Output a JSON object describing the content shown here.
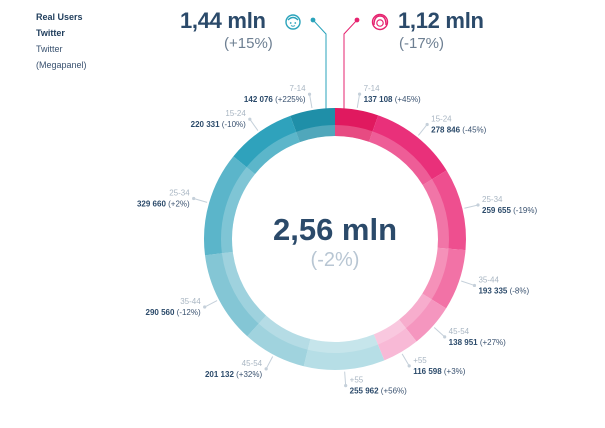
{
  "legend": {
    "real_users": "Real Users",
    "twitter": "Twitter",
    "twitter2": "Twitter",
    "megapanel": "(Megapanel)"
  },
  "totals": {
    "male": {
      "value": "1,44 mln",
      "change": "(+15%)",
      "color": "#2aa3bb",
      "icon": "male-face-icon"
    },
    "female": {
      "value": "1,12 mln",
      "change": "(-17%)",
      "color": "#e6236f",
      "icon": "female-face-icon"
    },
    "total": {
      "value": "2,56 mln",
      "change": "(-2%)"
    }
  },
  "chart_data": {
    "type": "donut",
    "center_value": "2,56 mln",
    "center_change": "(-2%)",
    "segments": [
      {
        "group": "female",
        "age": "7-14",
        "value": 137108,
        "value_label": "137 108",
        "change": "(+45%)",
        "color": "#e0195f"
      },
      {
        "group": "female",
        "age": "15-24",
        "value": 278846,
        "value_label": "278 846",
        "change": "(-45%)",
        "color": "#e9307a"
      },
      {
        "group": "female",
        "age": "25-34",
        "value": 259655,
        "value_label": "259 655",
        "change": "(-19%)",
        "color": "#ee4f8f"
      },
      {
        "group": "female",
        "age": "35-44",
        "value": 193335,
        "value_label": "193 335",
        "change": "(-8%)",
        "color": "#f272a6"
      },
      {
        "group": "female",
        "age": "45-54",
        "value": 138951,
        "value_label": "138 951",
        "change": "(+27%)",
        "color": "#f596bf"
      },
      {
        "group": "female",
        "age": "+55",
        "value": 116598,
        "value_label": "116 598",
        "change": "(+3%)",
        "color": "#f8b9d6"
      },
      {
        "group": "male",
        "age": "+55",
        "value": 255962,
        "value_label": "255 962",
        "change": "(+56%)",
        "color": "#b6dee6"
      },
      {
        "group": "male",
        "age": "45-54",
        "value": 201132,
        "value_label": "201 132",
        "change": "(+32%)",
        "color": "#a0d3de"
      },
      {
        "group": "male",
        "age": "35-44",
        "value": 290560,
        "value_label": "290 560",
        "change": "(-12%)",
        "color": "#84c6d5"
      },
      {
        "group": "male",
        "age": "25-34",
        "value": 329660,
        "value_label": "329 660",
        "change": "(+2%)",
        "color": "#5bb5ca"
      },
      {
        "group": "male",
        "age": "15-24",
        "value": 220331,
        "value_label": "220 331",
        "change": "(-10%)",
        "color": "#2fa2bc"
      },
      {
        "group": "male",
        "age": "7-14",
        "value": 142076,
        "value_label": "142 076",
        "change": "(+225%)",
        "color": "#1f8fa8"
      }
    ]
  }
}
